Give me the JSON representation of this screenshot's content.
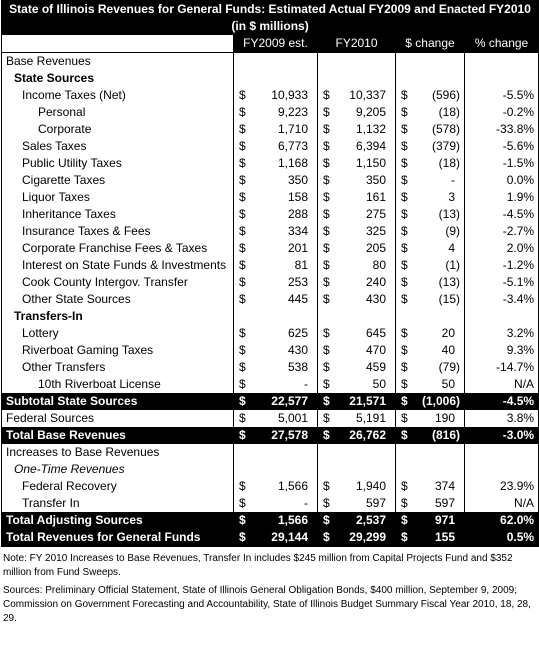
{
  "title": [
    "State of Illinois Revenues for General Funds: Estimated Actual FY2009 and Enacted FY2010",
    "(in $ millions)"
  ],
  "table": {
    "header": [
      "FY2009 est.",
      "FY2010",
      "$ change",
      "% change"
    ],
    "rows": [
      {
        "label": "Base Revenues"
      },
      {
        "label": "State Sources"
      },
      {
        "label": "Income Taxes (Net)",
        "cells": [
          "$",
          "10,933",
          "$",
          "10,337",
          "$",
          "(596)",
          "-5.5%"
        ]
      },
      {
        "label": "Personal",
        "cells": [
          "$",
          "9,223",
          "$",
          "9,205",
          "$",
          "(18)",
          "-0.2%"
        ]
      },
      {
        "label": "Corporate",
        "cells": [
          "$",
          "1,710",
          "$",
          "1,132",
          "$",
          "(578)",
          "-33.8%"
        ]
      },
      {
        "label": "Sales Taxes",
        "cells": [
          "$",
          "6,773",
          "$",
          "6,394",
          "$",
          "(379)",
          "-5.6%"
        ]
      },
      {
        "label": "Public Utility Taxes",
        "cells": [
          "$",
          "1,168",
          "$",
          "1,150",
          "$",
          "(18)",
          "-1.5%"
        ]
      },
      {
        "label": "Cigarette Taxes",
        "cells": [
          "$",
          "350",
          "$",
          "350",
          "$",
          "-",
          "0.0%"
        ]
      },
      {
        "label": "Liquor Taxes",
        "cells": [
          "$",
          "158",
          "$",
          "161",
          "$",
          "3",
          "1.9%"
        ]
      },
      {
        "label": "Inheritance Taxes",
        "cells": [
          "$",
          "288",
          "$",
          "275",
          "$",
          "(13)",
          "-4.5%"
        ]
      },
      {
        "label": "Insurance Taxes & Fees",
        "cells": [
          "$",
          "334",
          "$",
          "325",
          "$",
          "(9)",
          "-2.7%"
        ]
      },
      {
        "label": "Corporate Franchise Fees & Taxes",
        "cells": [
          "$",
          "201",
          "$",
          "205",
          "$",
          "4",
          "2.0%"
        ]
      },
      {
        "label": "Interest on State Funds & Investments",
        "cells": [
          "$",
          "81",
          "$",
          "80",
          "$",
          "(1)",
          "-1.2%"
        ]
      },
      {
        "label": "Cook County Intergov. Transfer",
        "cells": [
          "$",
          "253",
          "$",
          "240",
          "$",
          "(13)",
          "-5.1%"
        ]
      },
      {
        "label": "Other State Sources",
        "cells": [
          "$",
          "445",
          "$",
          "430",
          "$",
          "(15)",
          "-3.4%"
        ]
      },
      {
        "label": "Transfers-In"
      },
      {
        "label": "Lottery",
        "cells": [
          "$",
          "625",
          "$",
          "645",
          "$",
          "20",
          "3.2%"
        ]
      },
      {
        "label": "Riverboat Gaming Taxes",
        "cells": [
          "$",
          "430",
          "$",
          "470",
          "$",
          "40",
          "9.3%"
        ]
      },
      {
        "label": "Other Transfers",
        "cells": [
          "$",
          "538",
          "$",
          "459",
          "$",
          "(79)",
          "-14.7%"
        ]
      },
      {
        "label": "10th Riverboat License",
        "cells": [
          "$",
          "-",
          "$",
          "50",
          "$",
          "50",
          "N/A"
        ]
      },
      {
        "label": "Subtotal State Sources",
        "cells": [
          "$",
          "22,577",
          "$",
          "21,571",
          "$",
          "(1,006)",
          "-4.5%"
        ]
      },
      {
        "label": "Federal Sources",
        "cells": [
          "$",
          "5,001",
          "$",
          "5,191",
          "$",
          "190",
          "3.8%"
        ]
      },
      {
        "label": "Total Base Revenues",
        "cells": [
          "$",
          "27,578",
          "$",
          "26,762",
          "$",
          "(816)",
          "-3.0%"
        ]
      },
      {
        "label": "Increases to Base Revenues"
      },
      {
        "label": "One-Time Revenues"
      },
      {
        "label": "Federal Recovery",
        "cells": [
          "$",
          "1,566",
          "$",
          "1,940",
          "$",
          "374",
          "23.9%"
        ]
      },
      {
        "label": "Transfer In",
        "cells": [
          "$",
          "-",
          "$",
          "597",
          "$",
          "597",
          "N/A"
        ]
      },
      {
        "label": "Total Adjusting Sources",
        "cells": [
          "$",
          "1,566",
          "$",
          "2,537",
          "$",
          "971",
          "62.0%"
        ]
      },
      {
        "label": "Total Revenues for General Funds",
        "cells": [
          "$",
          "29,144",
          "$",
          "29,299",
          "$",
          "155",
          "0.5%"
        ]
      }
    ]
  },
  "notes": [
    "Note: FY 2010 Increases to Base Revenues, Transfer In includes $245 million from Capital Projects Fund and $352 million from Fund Sweeps.",
    "Sources: Preliminary Official Statement, State of Illinois General Obligation Bonds, $400 million, September 9, 2009; Commission on Government Forecasting and Accountability, State of Illinois Budget Summary Fiscal Year 2010, 18, 28, 29."
  ]
}
